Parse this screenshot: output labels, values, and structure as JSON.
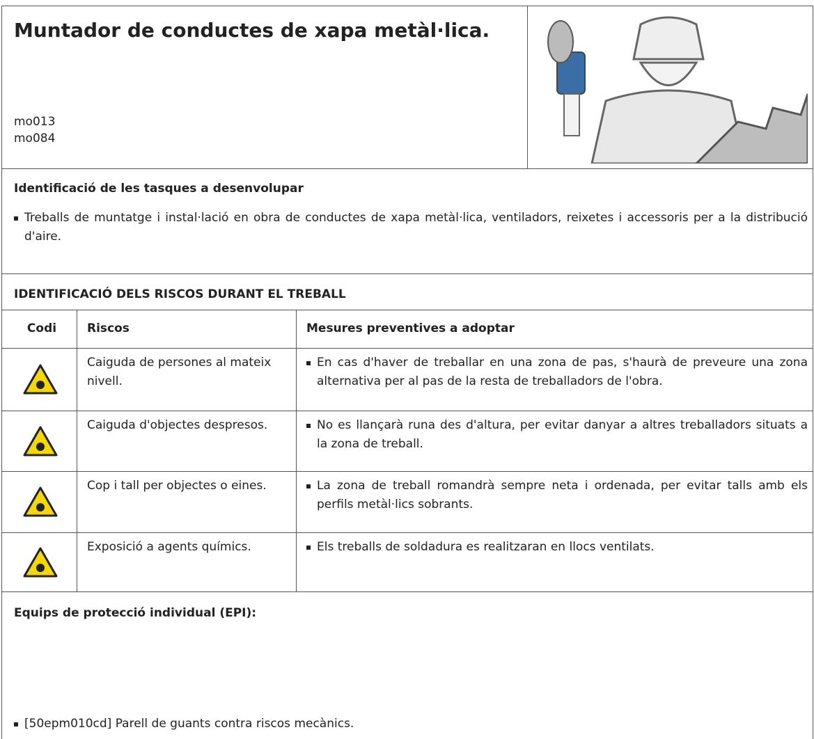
{
  "header": {
    "title": "Muntador de conductes de xapa metàl·lica.",
    "codes": [
      "mo013",
      "mo084"
    ]
  },
  "tasks": {
    "heading": "Identificació de les tasques a desenvolupar",
    "items": [
      "Treballs de muntatge i instal·lació en obra de conductes de xapa metàl·lica, ventiladors, reixetes i accessoris per a la distribució d'aire."
    ]
  },
  "risks": {
    "heading": "IDENTIFICACIÓ DELS RISCOS DURANT EL TREBALL",
    "columns": [
      "Codi",
      "Riscos",
      "Mesures preventives a adoptar"
    ],
    "rows": [
      {
        "risk": "Caiguda de persones al mateix nivell.",
        "measures": [
          "En cas d'haver de treballar en una zona de pas, s'haurà de preveure una zona alternativa per al pas de la resta de treballadors de l'obra."
        ]
      },
      {
        "risk": "Caiguda d'objectes despresos.",
        "measures": [
          "No es llançarà runa des d'altura, per evitar danyar a altres treballadors situats a la zona de treball."
        ]
      },
      {
        "risk": "Cop i tall per objectes o eines.",
        "measures": [
          "La zona de treball romandrà sempre neta i ordenada, per evitar talls amb els perfils metàl·lics sobrants."
        ]
      },
      {
        "risk": "Exposició a agents químics.",
        "measures": [
          "Els treballs de soldadura es realitzaran en llocs ventilats."
        ]
      }
    ]
  },
  "epi": {
    "heading": "Equips de protecció individual (EPI):",
    "items": [
      "[50epm010cd] Parell de guants contra riscos mecànics."
    ]
  }
}
